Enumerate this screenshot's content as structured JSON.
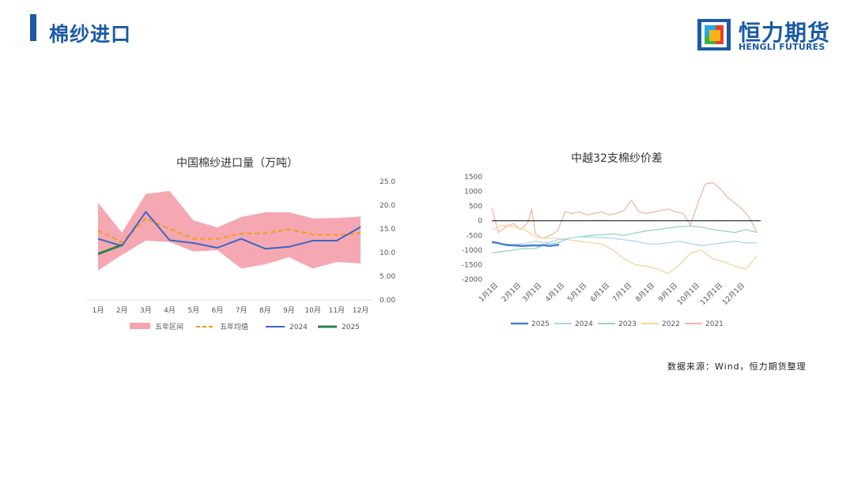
{
  "header": {
    "title": "棉纱进口",
    "logo_cn": "恒力期货",
    "logo_en": "HENGLI FUTURES",
    "brand_color": "#1a5aa6"
  },
  "source": "数据来源：Wind，恒力期货整理",
  "chart_data": [
    {
      "type": "line",
      "title": "中国棉纱进口量（万吨）",
      "categories": [
        "1月",
        "2月",
        "3月",
        "4月",
        "5月",
        "6月",
        "7月",
        "8月",
        "9月",
        "10月",
        "11月",
        "12月"
      ],
      "ylim": [
        0,
        25
      ],
      "yticks": [
        "0.00",
        "5.00",
        "10.00",
        "15.00",
        "20.00",
        "25.00"
      ],
      "yaxis_side": "right",
      "grid": false,
      "legend_position": "bottom",
      "band": {
        "name": "五年区间",
        "color": "#f4a3ad",
        "low": [
          6.2,
          9.5,
          12.5,
          12.2,
          10.2,
          10.5,
          6.6,
          7.5,
          9.0,
          6.6,
          8.0,
          7.7
        ],
        "high": [
          20.5,
          14.2,
          22.4,
          23.0,
          16.8,
          15.3,
          17.5,
          18.5,
          18.5,
          17.2,
          17.3,
          17.6
        ]
      },
      "series": [
        {
          "name": "五年均值",
          "color": "#f39c12",
          "dashed": true,
          "values": [
            14.6,
            12.2,
            17.2,
            15.0,
            12.9,
            12.9,
            14.0,
            14.1,
            14.9,
            13.8,
            13.7,
            14.1
          ]
        },
        {
          "name": "2024",
          "color": "#3a66c6",
          "values": [
            12.9,
            11.4,
            18.6,
            12.6,
            12.0,
            11.0,
            12.9,
            10.8,
            11.2,
            12.5,
            12.5,
            15.4
          ]
        },
        {
          "name": "2025",
          "color": "#2e7d4f",
          "values": [
            9.7,
            11.6,
            null,
            null,
            null,
            null,
            null,
            null,
            null,
            null,
            null,
            null
          ]
        }
      ]
    },
    {
      "type": "line",
      "title": "中越32支棉纱价差",
      "x_ticks": [
        "1月1日",
        "2月1日",
        "3月1日",
        "4月1日",
        "5月1日",
        "6月1日",
        "7月1日",
        "8月1日",
        "9月1日",
        "10月1日",
        "11月1日",
        "12月1日"
      ],
      "ylim": [
        -2000,
        1500
      ],
      "yticks": [
        "1500",
        "1000",
        "500",
        "0",
        "-500",
        "-1000",
        "-1500",
        "-2000"
      ],
      "grid": false,
      "legend_position": "bottom",
      "zero_line": true,
      "series": [
        {
          "name": "2025",
          "color": "#4a7fcf",
          "width": 2.5,
          "x": [
            1,
            8,
            15,
            22,
            29,
            36,
            43,
            50,
            57,
            64,
            71,
            78,
            85,
            92
          ],
          "y": [
            -730,
            -750,
            -800,
            -830,
            -840,
            -850,
            -860,
            -850,
            -840,
            -850,
            -830,
            -860,
            -840,
            -820
          ]
        },
        {
          "name": "2024",
          "color": "#a9d6ee",
          "x": [
            1,
            15,
            30,
            45,
            60,
            75,
            90,
            105,
            120,
            135,
            150,
            165,
            180,
            195,
            210,
            225,
            240,
            255,
            270,
            285,
            300,
            315,
            330,
            345,
            360
          ],
          "y": [
            -750,
            -800,
            -820,
            -780,
            -700,
            -750,
            -650,
            -600,
            -550,
            -560,
            -580,
            -600,
            -650,
            -700,
            -780,
            -800,
            -750,
            -700,
            -780,
            -850,
            -800,
            -750,
            -700,
            -760,
            -750
          ]
        },
        {
          "name": "2023",
          "color": "#93d5bd",
          "x": [
            1,
            15,
            30,
            45,
            60,
            75,
            90,
            105,
            120,
            135,
            150,
            165,
            180,
            195,
            210,
            225,
            240,
            255,
            270,
            285,
            300,
            315,
            330,
            345,
            360
          ],
          "y": [
            -1100,
            -1050,
            -1000,
            -950,
            -950,
            -800,
            -750,
            -600,
            -550,
            -500,
            -480,
            -450,
            -500,
            -420,
            -350,
            -300,
            -250,
            -200,
            -180,
            -220,
            -300,
            -350,
            -400,
            -300,
            -400
          ]
        },
        {
          "name": "2022",
          "color": "#f9d39a",
          "x": [
            1,
            15,
            30,
            45,
            60,
            75,
            90,
            105,
            120,
            135,
            150,
            165,
            180,
            195,
            210,
            225,
            240,
            255,
            270,
            285,
            300,
            315,
            330,
            345,
            360
          ],
          "y": [
            -300,
            -150,
            -200,
            -300,
            -550,
            -600,
            -600,
            -650,
            -700,
            -750,
            -800,
            -1000,
            -1300,
            -1500,
            -1550,
            -1650,
            -1800,
            -1500,
            -1100,
            -1000,
            -1300,
            -1400,
            -1550,
            -1650,
            -1200
          ]
        },
        {
          "name": "2021",
          "color": "#f2b6a8",
          "x": [
            1,
            10,
            20,
            30,
            40,
            50,
            55,
            60,
            70,
            80,
            90,
            100,
            110,
            120,
            130,
            140,
            150,
            160,
            170,
            180,
            190,
            200,
            210,
            220,
            230,
            240,
            250,
            260,
            270,
            280,
            290,
            300,
            310,
            320,
            330,
            340,
            350,
            360
          ],
          "y": [
            450,
            -400,
            -200,
            -100,
            -300,
            -50,
            400,
            -450,
            -600,
            -500,
            -350,
            300,
            250,
            300,
            200,
            250,
            300,
            200,
            250,
            350,
            700,
            300,
            250,
            300,
            350,
            400,
            300,
            250,
            -150,
            600,
            1250,
            1300,
            1100,
            800,
            600,
            400,
            100,
            -400
          ]
        }
      ]
    }
  ]
}
